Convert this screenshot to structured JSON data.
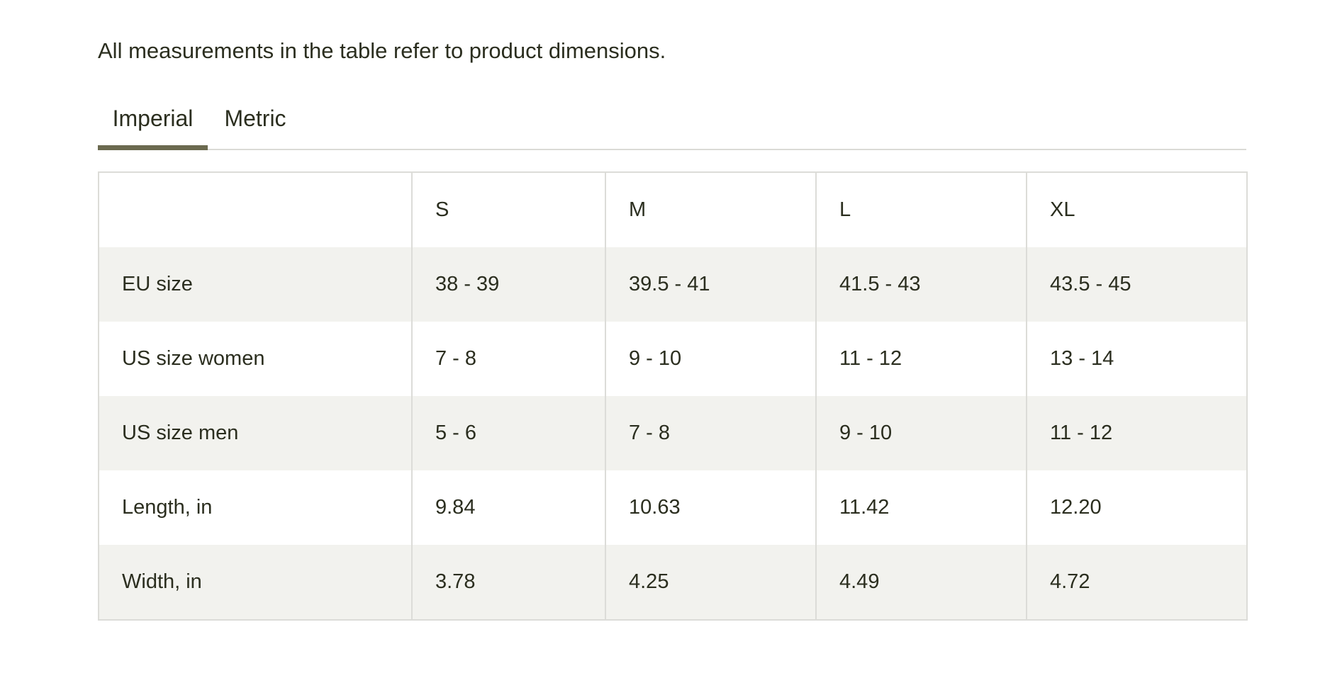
{
  "intro": {
    "text": "All measurements in the table refer to product dimensions."
  },
  "tabs": {
    "imperial": "Imperial",
    "metric": "Metric",
    "active": "Imperial"
  },
  "table": {
    "header": [
      "",
      "S",
      "M",
      "L",
      "XL"
    ],
    "rows": [
      {
        "label": "EU size",
        "values": [
          "38 - 39",
          "39.5 - 41",
          "41.5 - 43",
          "43.5 - 45"
        ]
      },
      {
        "label": "US size women",
        "values": [
          "7 - 8",
          "9 - 10",
          "11 - 12",
          "13 - 14"
        ]
      },
      {
        "label": "US size men",
        "values": [
          "5 - 6",
          "7 - 8",
          "9 - 10",
          "11 - 12"
        ]
      },
      {
        "label": "Length, in",
        "values": [
          "9.84",
          "10.63",
          "11.42",
          "12.20"
        ]
      },
      {
        "label": "Width, in",
        "values": [
          "3.78",
          "4.25",
          "4.49",
          "4.72"
        ]
      }
    ]
  },
  "colors": {
    "text": "#2b2e1f",
    "tab_underline": "#6b6a4f",
    "row_shade": "#f2f2ee",
    "border": "#dcdcd8"
  }
}
